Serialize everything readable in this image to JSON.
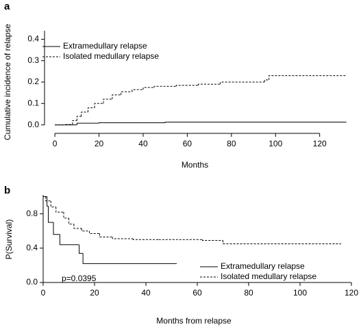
{
  "chart_data": [
    {
      "type": "step",
      "panel_label": "a",
      "x_label": "Months",
      "y_label": "Cumulative incidence of relapse",
      "xlim": [
        -5,
        135
      ],
      "ylim": [
        -0.03,
        0.43
      ],
      "xticks": [
        0,
        20,
        40,
        60,
        80,
        100,
        120
      ],
      "yticks": [
        {
          "value": 0,
          "label": "0.0"
        },
        0.1,
        0.2,
        0.3,
        0.4
      ],
      "legend": "upper left",
      "series": [
        {
          "name": "Extramedullary relapse",
          "color": "#000000",
          "dash": "solid",
          "x": [
            0,
            10,
            20,
            50,
            132
          ],
          "values": [
            0,
            0.008,
            0.01,
            0.013,
            0.015
          ]
        },
        {
          "name": "Isolated medullary relapse",
          "color": "#000000",
          "dash": "dashed",
          "x": [
            0,
            5,
            8,
            10,
            12,
            15,
            18,
            22,
            26,
            30,
            35,
            40,
            45,
            55,
            65,
            75,
            95,
            97,
            132
          ],
          "values": [
            0,
            0.002,
            0.02,
            0.04,
            0.06,
            0.08,
            0.1,
            0.12,
            0.14,
            0.155,
            0.165,
            0.175,
            0.18,
            0.185,
            0.19,
            0.2,
            0.21,
            0.23,
            0.23
          ]
        }
      ]
    },
    {
      "type": "step",
      "panel_label": "b",
      "x_label": "Months from relapse",
      "y_label": "P(Survival)",
      "annotation": "p=0.0395",
      "xlim": [
        0,
        120
      ],
      "ylim": [
        0,
        1.02
      ],
      "xticks": [
        0,
        20,
        40,
        60,
        80,
        100,
        120
      ],
      "yticks": [
        {
          "value": 0,
          "label": "0.0"
        },
        0.4,
        0.8
      ],
      "legend": "lower right",
      "series": [
        {
          "name": "Extramedullary relapse",
          "color": "#000000",
          "dash": "solid",
          "x": [
            0,
            1.5,
            2,
            4,
            6.5,
            14,
            15.5,
            52
          ],
          "values": [
            1,
            0.89,
            0.7,
            0.56,
            0.44,
            0.34,
            0.22,
            0.22
          ]
        },
        {
          "name": "Isolated medullary relapse",
          "color": "#000000",
          "dash": "dashed",
          "x": [
            0,
            1,
            3,
            5,
            8,
            10,
            12,
            15,
            18,
            22,
            27,
            35,
            45,
            62,
            70,
            116
          ],
          "values": [
            1,
            0.95,
            0.88,
            0.82,
            0.75,
            0.68,
            0.63,
            0.6,
            0.57,
            0.53,
            0.51,
            0.5,
            0.5,
            0.49,
            0.45,
            0.45
          ]
        }
      ]
    }
  ]
}
